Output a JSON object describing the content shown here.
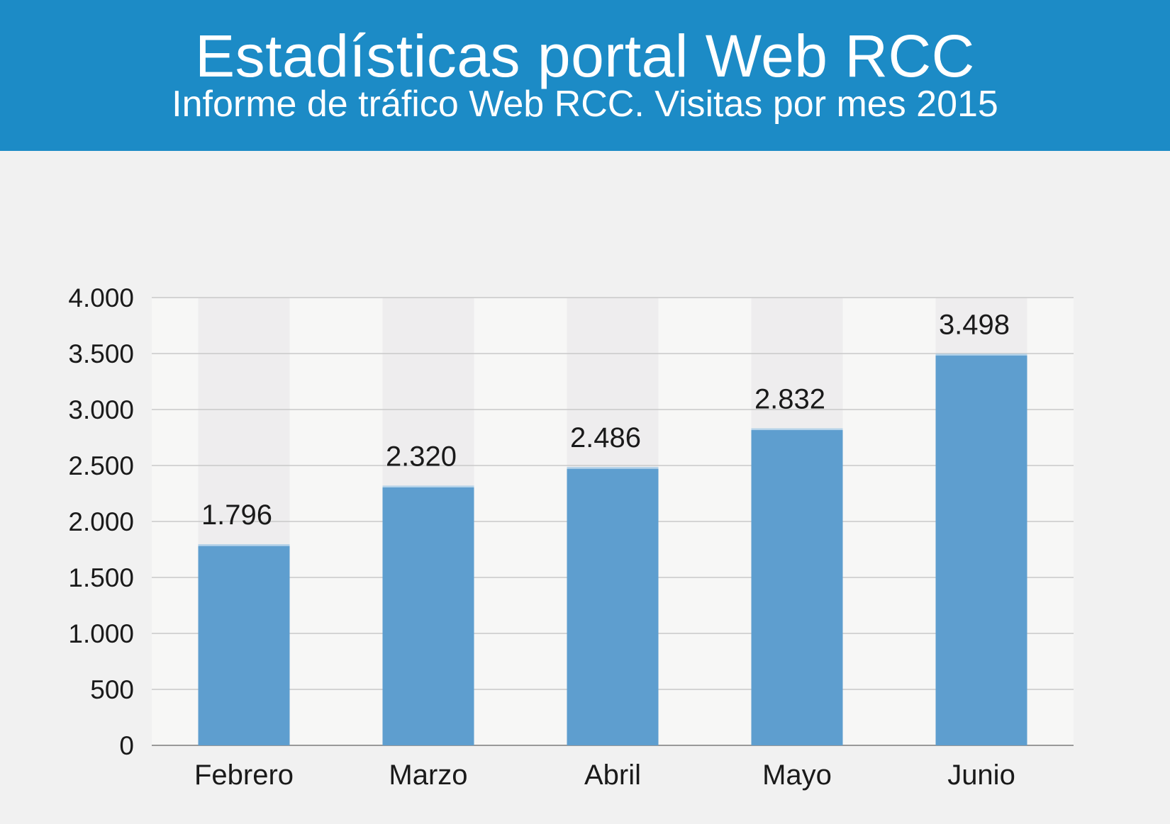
{
  "header": {
    "title": "Estadísticas portal Web RCC",
    "subtitle": "Informe de tráfico Web RCC. Visitas por mes 2015"
  },
  "chart_data": {
    "type": "bar",
    "title": "Estadísticas portal Web RCC",
    "subtitle": "Informe de tráfico Web RCC. Visitas por mes 2015",
    "categories": [
      "Febrero",
      "Marzo",
      "Abril",
      "Mayo",
      "Junio"
    ],
    "values": [
      1796,
      2320,
      2486,
      2832,
      3498
    ],
    "value_labels": [
      "1.796",
      "2.320",
      "2.486",
      "2.832",
      "3.498"
    ],
    "ylim": [
      0,
      4000
    ],
    "yticks": [
      0,
      500,
      1000,
      1500,
      2000,
      2500,
      3000,
      3500,
      4000
    ],
    "ytick_labels": [
      "0",
      "500",
      "1.000",
      "1.500",
      "2.000",
      "2.500",
      "3.000",
      "3.500",
      "4.000"
    ],
    "xlabel": "",
    "ylabel": "",
    "grid": true,
    "legend": "none",
    "colors": {
      "bar": "#5e9ecf",
      "header_bg": "#1c8bc6",
      "plot_bg": "#f7f7f6",
      "bar_column_bg": "#eeedee",
      "grid": "#c9c9c9",
      "axis": "#999999"
    }
  }
}
